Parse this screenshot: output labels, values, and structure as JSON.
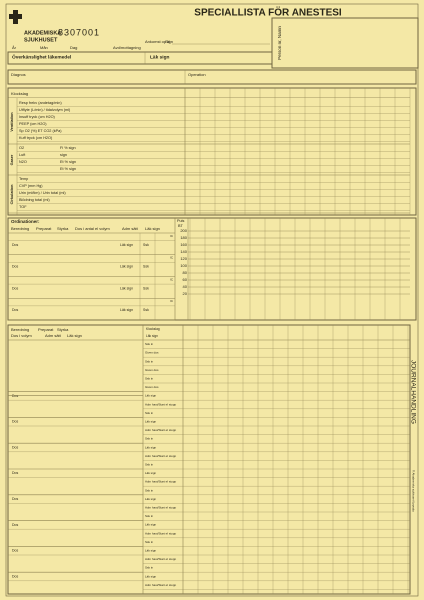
{
  "header": {
    "logo_line1": "AKADEMISKA",
    "logo_line2": "SJUKHUSET",
    "form_number": "8307001",
    "title": "SPECIALLISTA FÖR ANESTESI",
    "person_label": "Person nr, Namn"
  },
  "fields": {
    "arrival": "Ankomst op kl",
    "sign": "Sign",
    "year": "År",
    "month": "Mån",
    "day": "Dag",
    "ward": "Avd/mottagning",
    "allergy": "Överkänslighet läkemedel",
    "doctor_sign": "Läk sign",
    "diagnosis": "Diagnos",
    "operation": "Operation"
  },
  "vitals": {
    "time_label": "Klockslag",
    "groups": [
      {
        "name": "Ventilation",
        "rows": [
          {
            "label": "Resp frekv (andetag/min)"
          },
          {
            "label": "Utflyte (L/min) / tidalvolym (ml)"
          },
          {
            "label": "Insuff tryck (cm H2O)"
          },
          {
            "label": "PEEP (cm H2O)"
          },
          {
            "label": "Sp O2 (%) ET CO2 (kPa)"
          },
          {
            "label": "Kuff tryck (cm H2O)"
          }
        ]
      },
      {
        "name": "Gaser",
        "rows": [
          {
            "label": "O2",
            "note": "Fi % sign"
          },
          {
            "label": "Luft",
            "note": "sign"
          },
          {
            "label": "N2O",
            "note": "Et % sign"
          },
          {
            "note": "Et % sign"
          }
        ]
      },
      {
        "name": "Cirkulation",
        "rows": [
          {
            "label": "Temp"
          },
          {
            "label": "CVP (mm Hg)"
          },
          {
            "label": "Urin (ml/tim) / Urin total (ml)"
          },
          {
            "label": "Blödning total (ml)"
          },
          {
            "label": "TOF"
          }
        ]
      }
    ]
  },
  "scale": {
    "label_top": "Puls",
    "label_bottom": "BT",
    "ticks": [
      200,
      180,
      160,
      140,
      120,
      100,
      80,
      60,
      40,
      20
    ]
  },
  "orders": {
    "title": "Ordinationer:",
    "columns": [
      "Beredning",
      "Preparat",
      "Styrka",
      "Dos i antal el volym",
      "Adm sätt",
      "Läk sign"
    ],
    "ic": "IC",
    "dose": "Dos",
    "doctor_sign": "Läk sign",
    "nurse": "Ssk"
  },
  "infusions": {
    "columns_1": [
      "Beredning",
      "Preparat",
      "Styrka"
    ],
    "columns_2": [
      "Dos i volym",
      "Adm sätt",
      "Läk sign"
    ],
    "time_label": "Klockslag",
    "doctor_sign": "Läk sign",
    "dose": "Dos",
    "nurse_in": "Ssk in",
    "given": "Given dos",
    "rate": "Adm hast/Start el stopp"
  },
  "side": {
    "journal": "JOURNALHANDLING",
    "print": "© Akademiska sjukhuset Uppsala"
  }
}
